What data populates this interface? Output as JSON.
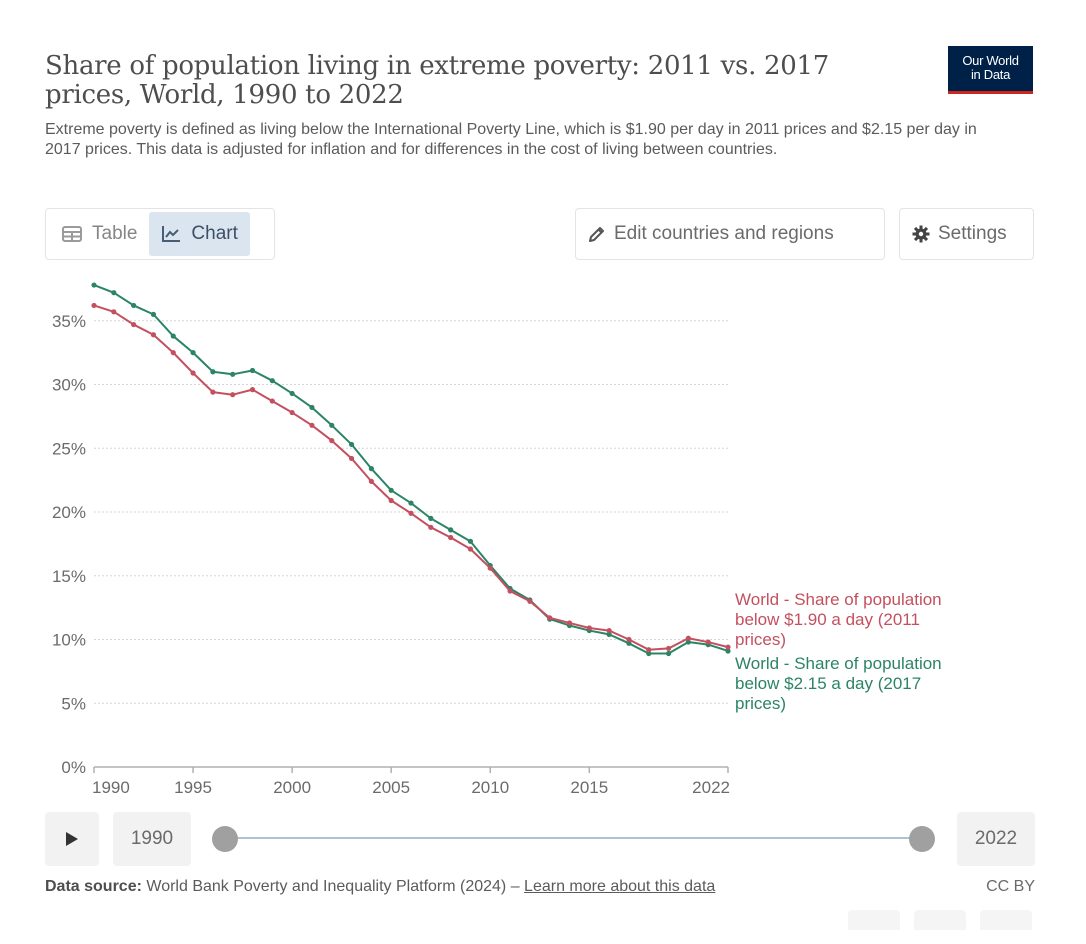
{
  "header": {
    "title": "Share of population living in extreme poverty: 2011 vs. 2017 prices, World, 1990 to 2022",
    "subtitle": "Extreme poverty is defined as living below the International Poverty Line, which is $1.90 per day in 2011 prices and $2.15 per day in 2017 prices. This data is adjusted for inflation and for differences in the cost of living between countries.",
    "logo_line1": "Our World",
    "logo_line2": "in Data"
  },
  "toolbar": {
    "tabs": [
      {
        "label": "Table",
        "icon": "table-icon",
        "active": false
      },
      {
        "label": "Chart",
        "icon": "line-chart-icon",
        "active": true
      }
    ],
    "edit_label": "Edit countries and regions",
    "edit_icon": "pencil-icon",
    "settings_label": "Settings",
    "settings_icon": "gear-icon"
  },
  "timeline": {
    "play_icon": "play-icon",
    "start_year": "1990",
    "end_year": "2022"
  },
  "footer": {
    "source_label": "Data source:",
    "source_text": "World Bank Poverty and Inequality Platform (2024) – ",
    "learn_more": "Learn more about this data",
    "license": "CC BY"
  },
  "colors": {
    "series_2011": "#c4505f",
    "series_2017": "#2b8465",
    "grid": "#dddddd",
    "axis": "#a0a0a0"
  },
  "chart_data": {
    "type": "line",
    "title": "Share of population living in extreme poverty: 2011 vs. 2017 prices, World, 1990 to 2022",
    "xlabel": "",
    "ylabel": "",
    "x": [
      1990,
      1991,
      1992,
      1993,
      1994,
      1995,
      1996,
      1997,
      1998,
      1999,
      2000,
      2001,
      2002,
      2003,
      2004,
      2005,
      2006,
      2007,
      2008,
      2009,
      2010,
      2011,
      2012,
      2013,
      2014,
      2015,
      2016,
      2017,
      2018,
      2019,
      2020,
      2021,
      2022
    ],
    "xlim": [
      1990,
      2022
    ],
    "ylim": [
      0,
      37.5
    ],
    "x_ticks": [
      1990,
      1995,
      2000,
      2005,
      2010,
      2015,
      2022
    ],
    "x_tick_labels": [
      "1990",
      "1995",
      "2000",
      "2005",
      "2010",
      "2015",
      "2022"
    ],
    "y_ticks": [
      0,
      5,
      10,
      15,
      20,
      25,
      30,
      35
    ],
    "y_tick_labels": [
      "0%",
      "5%",
      "10%",
      "15%",
      "20%",
      "25%",
      "30%",
      "35%"
    ],
    "grid": "horizontal dotted",
    "legend": "inline-right",
    "series": [
      {
        "name": "World - Share of population below $1.90 a day (2011 prices)",
        "label_lines": [
          "World - Share of population",
          "below $1.90 a day (2011",
          "prices)"
        ],
        "color": "#c4505f",
        "values": [
          36.2,
          35.7,
          34.7,
          33.9,
          32.5,
          30.9,
          29.4,
          29.2,
          29.6,
          28.7,
          27.8,
          26.8,
          25.6,
          24.2,
          22.4,
          20.9,
          19.9,
          18.8,
          18.0,
          17.1,
          15.6,
          13.8,
          13.0,
          11.7,
          11.3,
          10.9,
          10.7,
          10.0,
          9.2,
          9.3,
          10.1,
          9.8,
          9.4
        ]
      },
      {
        "name": "World - Share of population below $2.15 a day (2017 prices)",
        "label_lines": [
          "World - Share of population",
          "below $2.15 a day (2017",
          "prices)"
        ],
        "color": "#2b8465",
        "values": [
          37.8,
          37.2,
          36.2,
          35.5,
          33.8,
          32.5,
          31.0,
          30.8,
          31.1,
          30.3,
          29.3,
          28.2,
          26.8,
          25.3,
          23.4,
          21.7,
          20.7,
          19.5,
          18.6,
          17.7,
          15.8,
          14.0,
          13.1,
          11.6,
          11.1,
          10.7,
          10.4,
          9.7,
          8.9,
          8.9,
          9.8,
          9.6,
          9.1
        ]
      }
    ]
  }
}
